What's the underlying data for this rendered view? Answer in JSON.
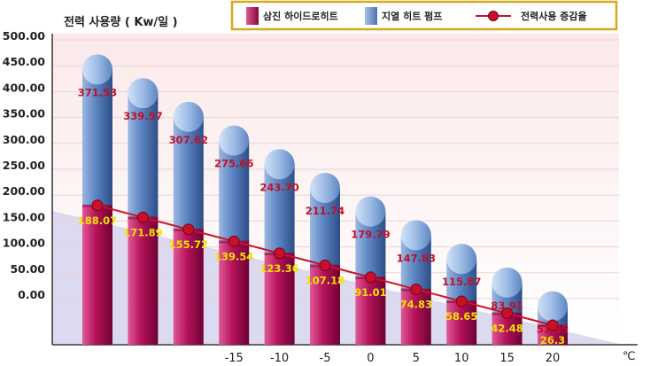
{
  "chart_data": {
    "type": "bar",
    "ylabel": "전력 사용량 ( Kw/일 )",
    "y_ticks": [
      "500.00",
      "450.00",
      "400.00",
      "350.00",
      "300.00",
      "250.00",
      "200.00",
      "150.00",
      "100.00",
      "50.00",
      "0.00"
    ],
    "x_ticks": [
      "-15",
      "-10",
      "-5",
      "0",
      "5",
      "10",
      "15",
      "20"
    ],
    "x_unit": "℃",
    "categories": [
      "",
      "",
      "",
      "-15",
      "-10",
      "-5",
      "0",
      "5",
      "10",
      "15",
      "20"
    ],
    "series": [
      {
        "name": "삼진 하이드로히트",
        "type": "bar",
        "color": "#c2185b",
        "values": [
          188.07,
          171.89,
          155.72,
          139.54,
          123.36,
          107.18,
          91.01,
          74.83,
          58.65,
          42.48,
          26.3
        ],
        "labels": [
          "188.07",
          "171.89",
          "155.72",
          "139.54",
          "123.36",
          "107.18",
          "91.01",
          "74.83",
          "58.65",
          "42.48",
          "26.3"
        ]
      },
      {
        "name": "지열 히트 펌프",
        "type": "bar",
        "color": "#6f97cf",
        "values": [
          371.53,
          339.57,
          307.62,
          275.66,
          243.7,
          211.74,
          179.79,
          147.83,
          115.87,
          83.91,
          51.95
        ],
        "labels": [
          "371.53",
          "339.57",
          "307.62",
          "275.66",
          "243.70",
          "211.74",
          "179.79",
          "147.83",
          "115.87",
          "83.91",
          "51.95"
        ]
      },
      {
        "name": "전력사용 증감율",
        "type": "line",
        "color": "#d0102a",
        "values": [
          188.07,
          171.89,
          155.72,
          139.54,
          123.36,
          107.18,
          91.01,
          74.83,
          58.65,
          42.48,
          26.3
        ]
      }
    ],
    "legend_position": "top"
  }
}
